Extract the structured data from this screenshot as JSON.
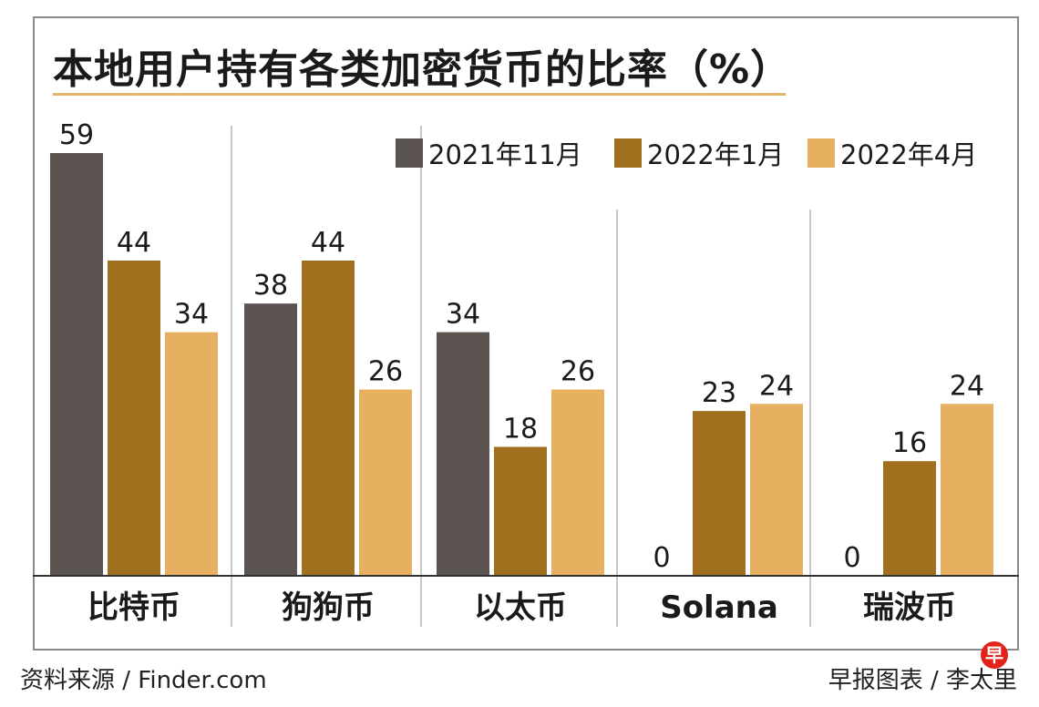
{
  "header": {
    "title": "本地用户持有各类加密货币的比率（%）"
  },
  "footer": {
    "source": "资料来源 / Finder.com",
    "credit": "早报图表 / 李太里",
    "logo_text": "早"
  },
  "colors": {
    "series": [
      "#5a5350",
      "#a0701e",
      "#e6b060"
    ],
    "axis": "#333333",
    "divider": "#c8c8c8",
    "title_rule": "#e3b567"
  },
  "chart_data": {
    "type": "bar",
    "title": "本地用户持有各类加密货币的比率（%）",
    "xlabel": "",
    "ylabel": "",
    "ylim": [
      0,
      59
    ],
    "grid": false,
    "legend_position": "top-right",
    "categories": [
      "比特币",
      "狗狗币",
      "以太币",
      "Solana",
      "瑞波币"
    ],
    "series": [
      {
        "name": "2021年11月",
        "values": [
          59,
          38,
          34,
          0,
          0
        ]
      },
      {
        "name": "2022年1月",
        "values": [
          44,
          44,
          18,
          23,
          16
        ]
      },
      {
        "name": "2022年4月",
        "values": [
          34,
          26,
          26,
          24,
          24
        ]
      }
    ]
  }
}
